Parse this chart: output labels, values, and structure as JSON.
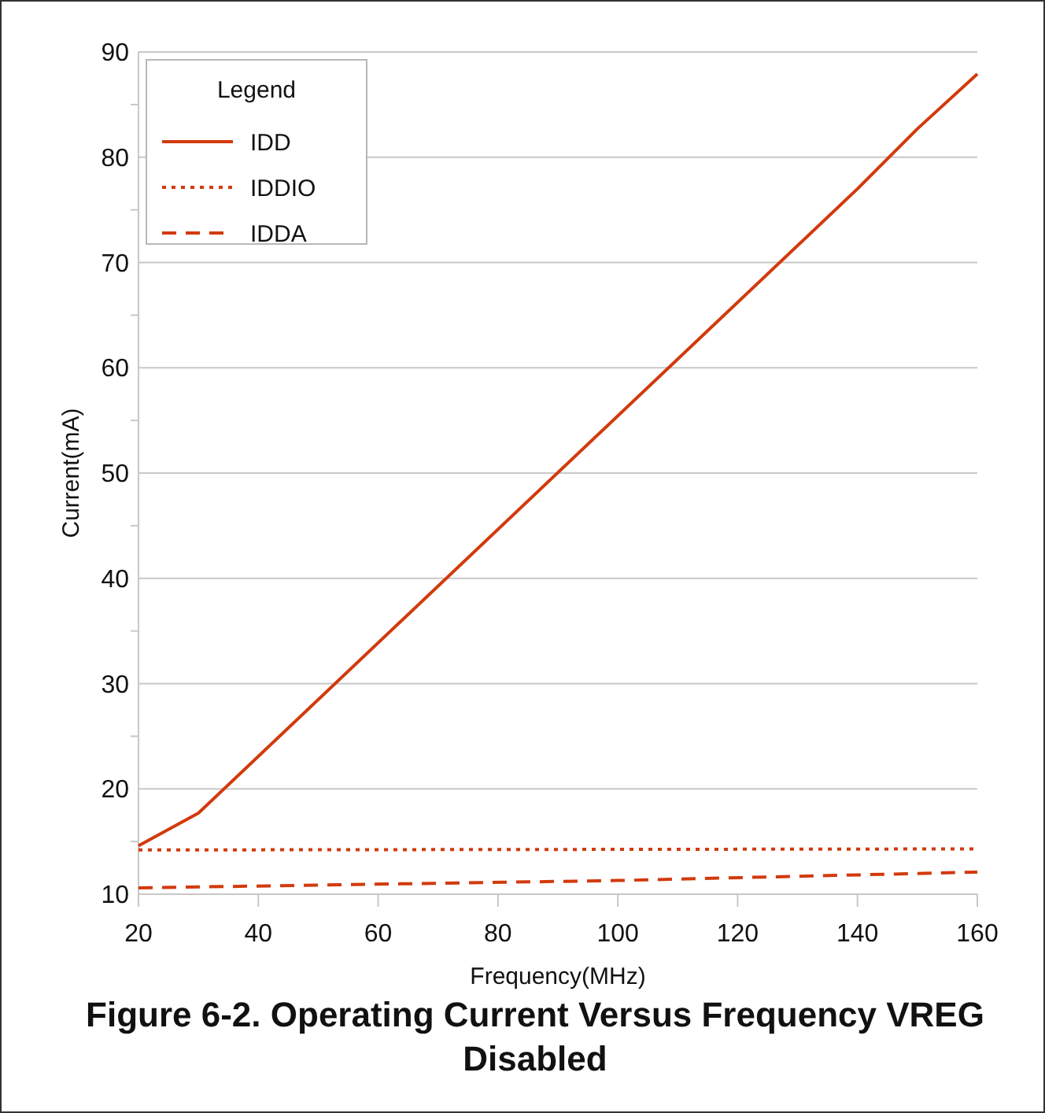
{
  "chart_data": {
    "type": "line",
    "title": "Figure 6-2. Operating Current Versus Frequency VREG Disabled",
    "xlabel": "Frequency(MHz)",
    "ylabel": "Current(mA)",
    "legend_title": "Legend",
    "xlim": [
      20,
      160
    ],
    "xticks": [
      20,
      40,
      60,
      80,
      100,
      120,
      140,
      160
    ],
    "ylim": [
      10,
      90
    ],
    "yticks": [
      10,
      {
        "value": 15,
        "label": null
      },
      20,
      {
        "value": 25,
        "label": null
      },
      30,
      {
        "value": 35,
        "label": null
      },
      40,
      {
        "value": 45,
        "label": null
      },
      50,
      {
        "value": 55,
        "label": null
      },
      60,
      {
        "value": 65,
        "label": null
      },
      70,
      {
        "value": 75,
        "label": null
      },
      80,
      {
        "value": 85,
        "label": null
      },
      90
    ],
    "grid": "y",
    "legend": "top left",
    "series": [
      {
        "name": "IDD",
        "color": "#d23a0c",
        "line_style": "solid",
        "x": [
          20,
          30,
          140,
          150,
          160
        ],
        "values": [
          14.6,
          17.7,
          77,
          82.7,
          87.9
        ]
      },
      {
        "name": "IDDIO",
        "color": "#d23a0c",
        "line_style": "dotted",
        "x": [
          20,
          160
        ],
        "values": [
          14.2,
          14.3
        ]
      },
      {
        "name": "IDDA",
        "color": "#d23a0c",
        "line_style": "dashed",
        "x": [
          20,
          100,
          160
        ],
        "values": [
          10.6,
          11.3,
          12.1
        ]
      }
    ]
  }
}
